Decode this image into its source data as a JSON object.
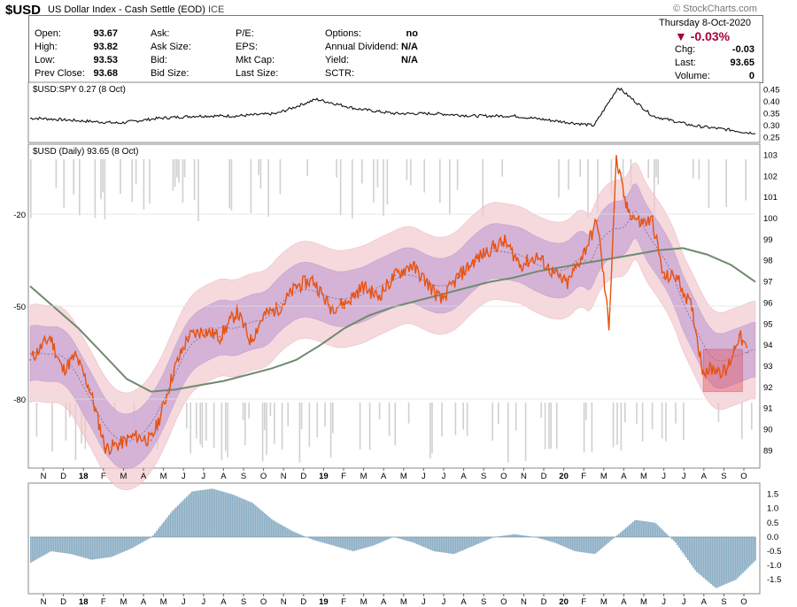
{
  "header": {
    "symbol": "$USD",
    "description": "US Dollar Index - Cash Settle (EOD)",
    "exchange": "ICE",
    "watermark": "© StockCharts.com",
    "date": "Thursday 8-Oct-2020",
    "change_pct": "-0.03%",
    "change_label": "Chg:",
    "change_value": "-0.03",
    "last_label": "Last:",
    "last_value": "93.65",
    "volume_label": "Volume:",
    "volume_value": "0"
  },
  "quote": {
    "col1": [
      {
        "label": "Open:",
        "value": "93.67"
      },
      {
        "label": "High:",
        "value": "93.82"
      },
      {
        "label": "Low:",
        "value": "93.53"
      },
      {
        "label": "Prev Close:",
        "value": "93.68"
      }
    ],
    "col2": [
      "Ask:",
      "Ask Size:",
      "Bid:",
      "Bid Size:"
    ],
    "col3": [
      "P/E:",
      "EPS:",
      "Mkt Cap:",
      "Last Size:"
    ],
    "col4": [
      {
        "label": "Options:",
        "value": "no"
      },
      {
        "label": "Annual Dividend:",
        "value": "N/A"
      },
      {
        "label": "Yield:",
        "value": "N/A"
      },
      {
        "label": "SCTR:",
        "value": ""
      }
    ]
  },
  "colors": {
    "price": "#e8520e",
    "ma": "#6e8a6e",
    "band": "#c9a7d6",
    "outer": "#f2c9cf",
    "hist": "#8fb0c6",
    "ratio": "#111111",
    "highlight": "#e05a6a"
  },
  "panels": {
    "ratio_label": "$USD:SPY 0.27 (8 Oct)",
    "price_label": "$USD (Daily) 93.65 (8 Oct)"
  },
  "chart_data": [
    {
      "type": "line",
      "title": "$USD:SPY 0.27 (8 Oct)",
      "ylim": [
        0.24,
        0.47
      ],
      "yticks": [
        "0.45",
        "0.40",
        "0.35",
        "0.30",
        "0.25"
      ],
      "series": [
        {
          "name": "$USD:SPY",
          "x": [
            "2017-10",
            "2017-12",
            "2018-02",
            "2018-04",
            "2018-06",
            "2018-08",
            "2018-10",
            "2018-12",
            "2019-02",
            "2019-04",
            "2019-06",
            "2019-08",
            "2019-10",
            "2019-12",
            "2020-02",
            "2020-03-23",
            "2020-05",
            "2020-07",
            "2020-09",
            "2020-10-08"
          ],
          "values": [
            0.33,
            0.32,
            0.31,
            0.33,
            0.34,
            0.34,
            0.35,
            0.41,
            0.37,
            0.35,
            0.35,
            0.34,
            0.34,
            0.32,
            0.3,
            0.46,
            0.34,
            0.3,
            0.28,
            0.27
          ]
        }
      ]
    },
    {
      "type": "line",
      "title": "$USD (Daily) 93.65 (8 Oct)",
      "ylim": [
        88.3,
        103.4
      ],
      "yticks": [
        "103",
        "102",
        "101",
        "100",
        "99",
        "98",
        "97",
        "96",
        "95",
        "94",
        "93",
        "92",
        "91",
        "90",
        "89"
      ],
      "left_ticks": [
        "-20",
        "-50",
        "-80"
      ],
      "x_month_labels": [
        "N",
        "D",
        "18",
        "F",
        "M",
        "A",
        "M",
        "J",
        "J",
        "A",
        "S",
        "O",
        "N",
        "D",
        "19",
        "F",
        "M",
        "A",
        "M",
        "J",
        "J",
        "A",
        "S",
        "O",
        "N",
        "D",
        "20",
        "F",
        "M",
        "A",
        "M",
        "J",
        "J",
        "A",
        "S",
        "O"
      ],
      "series": [
        {
          "name": "$USD",
          "dates": [
            "2017-10-01",
            "2017-11-01",
            "2017-11-20",
            "2017-12-10",
            "2018-01-01",
            "2018-01-25",
            "2018-02-15",
            "2018-03-10",
            "2018-04-05",
            "2018-04-20",
            "2018-05-10",
            "2018-06-01",
            "2018-06-25",
            "2018-07-20",
            "2018-08-15",
            "2018-09-05",
            "2018-09-25",
            "2018-10-20",
            "2018-11-15",
            "2018-12-10",
            "2019-01-05",
            "2019-01-30",
            "2019-02-25",
            "2019-03-20",
            "2019-04-15",
            "2019-05-10",
            "2019-06-05",
            "2019-06-25",
            "2019-07-20",
            "2019-08-15",
            "2019-09-10",
            "2019-10-01",
            "2019-10-25",
            "2019-11-20",
            "2019-12-15",
            "2020-01-05",
            "2020-02-01",
            "2020-02-20",
            "2020-03-09",
            "2020-03-20",
            "2020-04-05",
            "2020-04-25",
            "2020-05-15",
            "2020-06-01",
            "2020-06-20",
            "2020-07-15",
            "2020-07-31",
            "2020-08-20",
            "2020-09-05",
            "2020-09-25",
            "2020-10-08"
          ],
          "values": [
            93.3,
            94.4,
            92.8,
            93.5,
            91.9,
            89.1,
            89.3,
            89.7,
            89.5,
            90.7,
            92.8,
            94.4,
            94.7,
            94.4,
            95.6,
            94.2,
            95.4,
            95.8,
            96.8,
            97.1,
            95.8,
            96.0,
            96.8,
            96.3,
            97.3,
            97.8,
            96.9,
            96.1,
            97.2,
            98.0,
            98.6,
            98.9,
            97.8,
            98.2,
            97.4,
            96.9,
            98.5,
            99.9,
            94.9,
            102.8,
            100.5,
            99.8,
            99.9,
            97.2,
            97.3,
            95.7,
            92.8,
            92.9,
            92.7,
            94.5,
            93.65
          ]
        },
        {
          "name": "Moving Average",
          "values": [
            96.8,
            95.8,
            94.8,
            93.6,
            92.4,
            91.8,
            91.9,
            92.1,
            92.3,
            92.6,
            92.9,
            93.3,
            94.0,
            94.8,
            95.4,
            95.8,
            96.1,
            96.4,
            96.7,
            97.0,
            97.2,
            97.5,
            97.7,
            97.9,
            98.1,
            98.3,
            98.5,
            98.6,
            98.3,
            97.8,
            97.0
          ]
        }
      ],
      "annotations": [
        "highlight box Aug–Sep 2020 (91.8–93.8)"
      ]
    },
    {
      "type": "area",
      "title": "",
      "ylim": [
        -1.9,
        1.8
      ],
      "yticks": [
        "1.5",
        "1.0",
        "0.5",
        "0.0",
        "-0.5",
        "-1.0",
        "-1.5"
      ],
      "x_month_labels": [
        "N",
        "D",
        "18",
        "F",
        "M",
        "A",
        "M",
        "J",
        "J",
        "A",
        "S",
        "O",
        "N",
        "D",
        "19",
        "F",
        "M",
        "A",
        "M",
        "J",
        "J",
        "A",
        "S",
        "O",
        "N",
        "D",
        "20",
        "F",
        "M",
        "A",
        "M",
        "J",
        "J",
        "A",
        "S",
        "O"
      ],
      "series": [
        {
          "name": "oscillator",
          "values": [
            -0.9,
            -0.5,
            -0.6,
            -0.8,
            -0.7,
            -0.4,
            0.0,
            0.9,
            1.6,
            1.7,
            1.5,
            1.2,
            0.6,
            0.2,
            -0.1,
            -0.3,
            -0.5,
            -0.3,
            0.0,
            -0.2,
            -0.5,
            -0.6,
            -0.3,
            0.0,
            0.1,
            0.0,
            -0.2,
            -0.5,
            -0.6,
            0.0,
            0.6,
            0.5,
            -0.2,
            -1.2,
            -1.8,
            -1.5,
            -0.8
          ]
        }
      ]
    }
  ]
}
